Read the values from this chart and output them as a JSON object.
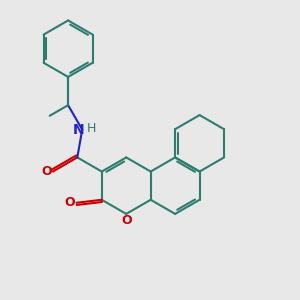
{
  "bg_color": "#e8e8e8",
  "bond_color": "#2d7d6e",
  "o_color": "#cc0000",
  "n_color": "#2222cc",
  "lw": 1.5,
  "lw_dbl": 1.5,
  "figsize": [
    3.0,
    3.0
  ],
  "dpi": 100,
  "xlim": [
    0,
    10
  ],
  "ylim": [
    0,
    10
  ]
}
